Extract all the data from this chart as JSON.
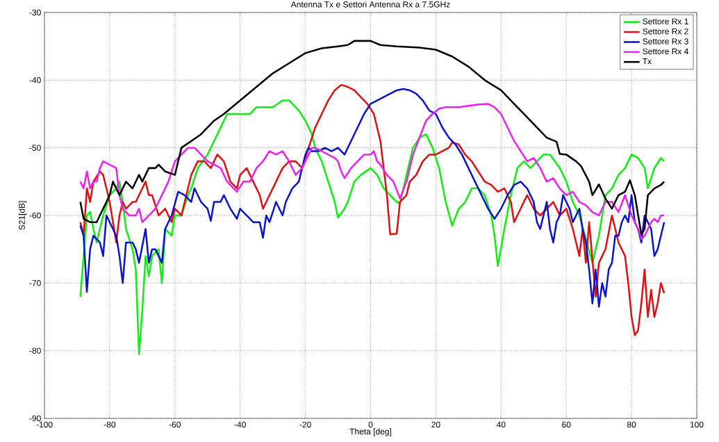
{
  "chart_data": {
    "type": "line",
    "title": "Antenna Tx e Settori Antenna Rx a 7.5GHz",
    "xlabel": "Theta [deg]",
    "ylabel": "S21[dB]",
    "xlim": [
      -100,
      100
    ],
    "ylim": [
      -90,
      -30
    ],
    "xticks": [
      -100,
      -80,
      -60,
      -40,
      -20,
      0,
      20,
      40,
      60,
      80,
      100
    ],
    "yticks": [
      -90,
      -80,
      -70,
      -60,
      -50,
      -40,
      -30
    ],
    "grid": true,
    "legend": "top right",
    "marker": "none",
    "line_style": "solid",
    "series": [
      {
        "name": "Settore Rx 1",
        "color": "#11ee11",
        "x": [
          -89,
          -88,
          -87,
          -86,
          -85,
          -84,
          -82,
          -80,
          -78,
          -77,
          -76,
          -75,
          -73,
          -72,
          -71,
          -70,
          -69,
          -68,
          -67,
          -65,
          -64,
          -63,
          -61,
          -60,
          -58,
          -56,
          -55,
          -53,
          -50,
          -47,
          -44,
          -40,
          -37,
          -35,
          -30,
          -27,
          -25,
          -22,
          -20,
          -18,
          -17,
          -15,
          -13,
          -11,
          -10,
          -8,
          -7,
          -5,
          -3,
          0,
          2,
          4,
          6,
          8,
          9,
          11,
          13,
          15,
          17,
          19,
          21,
          23,
          25,
          27,
          29,
          31,
          33,
          35,
          37,
          38,
          39,
          41,
          43,
          45,
          47,
          49,
          51,
          53,
          55,
          58,
          60,
          62,
          64,
          66,
          68,
          70,
          72,
          74,
          76,
          78,
          80,
          82,
          84,
          85,
          87,
          89,
          90
        ],
        "values": [
          -72,
          null,
          -60,
          -59.5,
          -62,
          -64,
          -60,
          -57,
          -56,
          -55,
          -58,
          -62,
          -65,
          -68,
          -80.5,
          -74,
          -66,
          -69,
          -66,
          -65,
          -70,
          -62,
          -63,
          -60,
          -60,
          -57,
          -56,
          -53,
          -51,
          -48,
          -45,
          -45,
          -45,
          -44,
          -44,
          -43,
          -43,
          -44.5,
          -46,
          -48,
          -50,
          -52,
          -55,
          -58,
          -60.3,
          -59,
          -58,
          -55,
          -54,
          -53,
          -54,
          -56,
          -57,
          -58,
          -58.2,
          -54,
          -50,
          -48.5,
          -48,
          -50,
          -53,
          -58,
          -61.5,
          -59,
          -58,
          -56,
          -56,
          -57,
          -60,
          -63,
          -67.5,
          -62,
          -57,
          -53,
          -52,
          -53,
          -52,
          -51,
          -51,
          -53,
          -55,
          -58,
          -60,
          null,
          -67,
          -63,
          -57,
          -56,
          -54,
          -53,
          -51,
          -51.5,
          -53,
          -56,
          -53,
          -51.5,
          -52
        ]
      },
      {
        "name": "Settore Rx 2",
        "color": "#dd1111",
        "x": [
          -89,
          -88,
          -87,
          -86,
          -85,
          -83,
          -82,
          -80,
          -79,
          -78,
          -77,
          -76,
          -75,
          -73,
          -72,
          -70,
          -69,
          -68,
          -67,
          -65,
          -63,
          -61,
          -60,
          -58,
          -56,
          -55,
          -53,
          -51,
          -49,
          -47,
          -45,
          -43,
          -41,
          -40,
          -38,
          -36,
          -34,
          -33,
          -31,
          -29,
          -27,
          -25,
          -23,
          -21,
          -19,
          -17,
          -15,
          -13,
          -11,
          -9,
          -7,
          -5,
          -3,
          -1,
          1,
          3,
          4,
          5,
          6,
          8,
          9,
          11,
          12,
          14,
          16,
          18,
          20,
          22,
          24,
          25,
          27,
          29,
          31,
          33,
          35,
          37,
          39,
          41,
          43,
          44,
          46,
          48,
          50,
          52,
          54,
          56,
          58,
          60,
          62,
          63,
          64,
          65,
          66,
          67,
          69,
          70,
          72,
          74,
          75,
          76,
          78,
          79,
          80,
          81,
          82,
          83,
          84,
          85,
          86,
          87,
          88,
          89,
          90
        ],
        "values": [
          -61,
          -63,
          -56,
          -58,
          -55,
          -53.5,
          -54,
          -58,
          -61,
          -64,
          -60,
          -58,
          -59,
          -58,
          -58,
          -56,
          -55,
          -57,
          -57,
          -60,
          -59,
          -61,
          -59,
          -60,
          -56,
          -54,
          -52,
          -52,
          -53,
          -51,
          -52,
          -55,
          -56,
          -54,
          -53,
          -55,
          -57,
          -59,
          -57,
          -55,
          -53,
          -52,
          -52,
          -53,
          -50,
          -47,
          -45,
          -43,
          -41.5,
          -40.7,
          -41,
          -41.5,
          -42.5,
          -43.5,
          -45,
          -49,
          -53,
          -57,
          -62.8,
          -62.7,
          -58,
          -57,
          -55,
          -54,
          -52,
          -51,
          -51,
          -50.5,
          -50,
          -49.2,
          -49.5,
          -51,
          -52,
          -53.5,
          -55,
          -55.5,
          -56.5,
          -56,
          -58,
          -61,
          -59,
          -57,
          -59,
          -60,
          -59,
          -58,
          -60,
          -59,
          -62,
          -64,
          -66,
          -62,
          -67,
          -61,
          -72,
          -67,
          -65,
          -60,
          -62,
          -64,
          -66,
          -70,
          -75,
          -77.7,
          -77,
          -73,
          -68,
          -75,
          -71,
          -75,
          -73,
          -70,
          -71.5
        ]
      },
      {
        "name": "Settore Rx 3",
        "color": "#0a14cc",
        "x": [
          -89,
          -88,
          -87,
          -86,
          -85,
          -83,
          -82,
          -81,
          -79,
          -78,
          -77,
          -76,
          -75,
          -73,
          -72,
          -71,
          -69,
          -68,
          -67,
          -66,
          -64,
          -63,
          -61,
          -59,
          -57,
          -55,
          -54,
          -52,
          -50,
          -49,
          -48,
          -46,
          -45,
          -43,
          -41,
          -40,
          -38,
          -36,
          -34,
          -33,
          -32,
          -31,
          -29,
          -27,
          -26,
          -24,
          -22,
          -20,
          -19,
          -18,
          -16,
          -14,
          -12,
          -10,
          -8,
          -6,
          -4,
          -2,
          0,
          2,
          4,
          6,
          8,
          10,
          12,
          14,
          16,
          18,
          20,
          22,
          24,
          26,
          28,
          30,
          32,
          34,
          36,
          38,
          40,
          42,
          44,
          46,
          48,
          50,
          51,
          52,
          53,
          54,
          55,
          56,
          57,
          58,
          59,
          60,
          61,
          62,
          63,
          64,
          65,
          66,
          67,
          68,
          69,
          70,
          71,
          72,
          73,
          74,
          75,
          76,
          77,
          78,
          79,
          80,
          81,
          82,
          83,
          84,
          85,
          86,
          87,
          88,
          89,
          90
        ],
        "values": [
          -61.5,
          -63,
          -71.3,
          -65,
          -63,
          -64,
          -66,
          -60,
          -62,
          -63,
          -66,
          -70,
          -64,
          -64,
          -65,
          -67,
          -62,
          -67,
          -65,
          -65,
          -67,
          -62,
          -60,
          -56.5,
          -57,
          -58,
          -56,
          -58,
          -59,
          -60.8,
          -58,
          -58,
          -57,
          -59,
          -60.5,
          -59,
          -60,
          -61,
          -61,
          -63.3,
          -60,
          -61,
          -58,
          -60,
          -58,
          -56,
          -55,
          -51,
          -50,
          -50.5,
          -50.5,
          -50,
          -50.5,
          -50,
          -51,
          -49,
          -47,
          -45,
          -43.5,
          -43,
          -42.5,
          -42,
          -41.5,
          -41.3,
          -41.5,
          -42,
          -43,
          -44.5,
          -45,
          -47,
          -48.5,
          -49.5,
          -51,
          -53,
          -55,
          -57,
          -59,
          -60.5,
          -59,
          -57,
          -55.5,
          -55,
          -56,
          -58,
          -61,
          -62,
          -60,
          -58,
          -62,
          -64,
          -61,
          -60,
          -57,
          -58,
          -59,
          -61,
          -60,
          -59,
          -62,
          -64,
          -68,
          -73,
          -68,
          -73.5,
          -70,
          -72,
          -68,
          -67,
          -63,
          -63,
          -61,
          -60,
          -61,
          -57,
          -61,
          -62,
          -64,
          -60,
          -61,
          -62,
          -66,
          -65,
          -63,
          -61
        ]
      },
      {
        "name": "Settore Rx 4",
        "color": "#ee22ee",
        "x": [
          -89,
          -88,
          -87,
          -86,
          -85,
          -84,
          -83,
          -82,
          -80,
          -78,
          -77,
          -76,
          -74,
          -72,
          -71,
          -70,
          -68,
          -66,
          -64,
          -62,
          -60,
          -58,
          -56,
          -54,
          -52,
          -50,
          -48,
          -46,
          -44,
          -42,
          -41,
          -39,
          -37,
          -35,
          -33,
          -31,
          -29,
          -27,
          -25,
          -23,
          -21,
          -19,
          -18,
          -17,
          -15,
          -13,
          -11,
          -10,
          -9,
          -8,
          -6,
          -4,
          -2,
          0,
          1,
          2,
          3,
          5,
          7,
          9,
          11,
          13,
          15,
          17,
          19,
          21,
          23,
          25,
          27,
          30,
          33,
          36,
          38,
          40,
          42,
          44,
          46,
          48,
          50,
          52,
          54,
          56,
          58,
          60,
          62,
          64,
          66,
          68,
          70,
          72,
          74,
          76,
          78,
          80,
          82,
          83,
          84,
          85,
          86,
          87,
          88,
          89,
          90
        ],
        "values": [
          -55,
          -56,
          -53.5,
          -56,
          -55,
          -55,
          -53,
          -52,
          -52.5,
          -53,
          -57,
          -59,
          -60,
          -60,
          -59,
          -61,
          -60,
          -59,
          -57,
          -55,
          -52,
          -51,
          -50,
          -50,
          -51,
          -52,
          -52.5,
          -53,
          -55,
          -56,
          -56.5,
          -55,
          -55,
          -53,
          -52,
          -50.5,
          -51,
          -50.5,
          -52,
          -54,
          -53,
          -51,
          -50,
          -50,
          -50.5,
          -51,
          -51.5,
          -52,
          -53.5,
          -54.5,
          -53,
          -52,
          -51,
          -51,
          -50.5,
          -52,
          -52.5,
          -54,
          -55,
          -57.5,
          -55,
          -51,
          -48.5,
          -46,
          -45,
          -44.2,
          -44,
          -44,
          -44,
          -43.8,
          -43.6,
          -43.5,
          -44,
          -45,
          -47,
          -49,
          -50.5,
          -52,
          -51.5,
          -53,
          -55,
          -54.5,
          -56,
          -57,
          -56.5,
          -58,
          -58.5,
          -59.5,
          -60,
          -58,
          -58,
          -59.5,
          -57,
          -60,
          -62,
          -63.5,
          -63,
          -62,
          -61,
          -60.5,
          -61,
          -60,
          -60
        ]
      },
      {
        "name": "Tx",
        "color": "#000000",
        "x": [
          -89,
          -88,
          -86,
          -84,
          -82,
          -80,
          -79,
          -77,
          -75,
          -73,
          -71,
          -70,
          -68,
          -66,
          -65,
          -63,
          -60,
          -58,
          -55,
          -52,
          -48,
          -45,
          -40,
          -35,
          -30,
          -25,
          -20,
          -15,
          -10,
          -7,
          -5,
          0,
          3,
          8,
          15,
          20,
          25,
          30,
          35,
          40,
          43,
          46,
          49,
          54,
          57,
          58,
          60,
          63,
          64.5,
          67,
          68,
          70,
          72,
          74,
          76,
          78,
          79.5,
          81,
          83,
          84,
          85,
          87,
          89,
          90
        ],
        "values": [
          -58,
          -60.5,
          -61,
          -61,
          -59,
          -57,
          -55,
          -57,
          -55,
          -56,
          -54,
          -55,
          -53,
          -53,
          -52.5,
          -53.5,
          -54,
          -50,
          -49,
          -48,
          -46,
          -45,
          -43,
          -41,
          -39,
          -37.5,
          -36,
          -35.3,
          -35,
          -34.8,
          -34.2,
          -34.2,
          -34.8,
          -35,
          -35.2,
          -35.5,
          -36.5,
          -38,
          -40,
          -41.5,
          -43,
          -44.5,
          -46,
          -48.5,
          -49.1,
          -50.9,
          -51,
          -52,
          -52.7,
          -55,
          -57,
          -55.4,
          -57.5,
          -59,
          -57,
          -56.5,
          -54.8,
          -57,
          -62.8,
          -62,
          -57,
          -56,
          -55.5,
          -55
        ]
      }
    ]
  }
}
